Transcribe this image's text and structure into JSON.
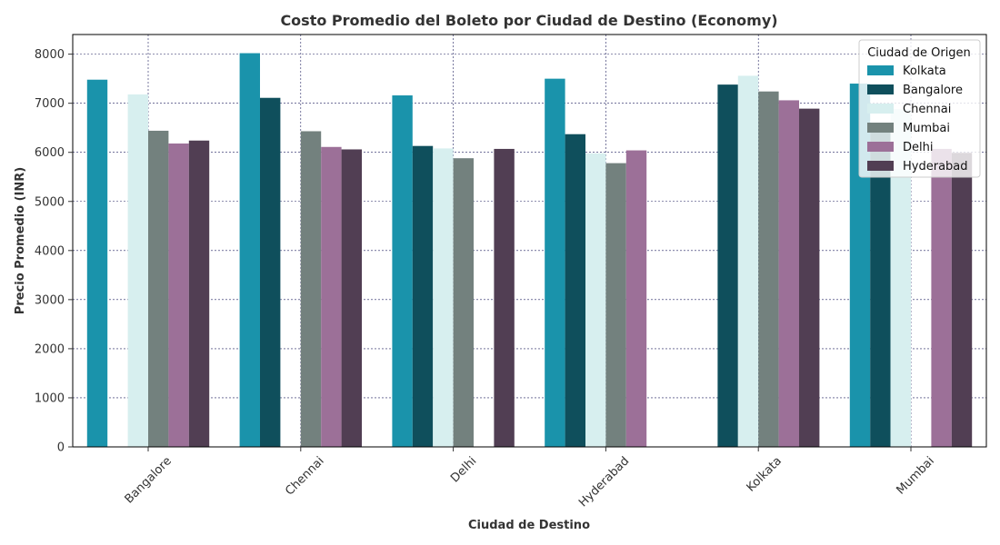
{
  "chart_data": {
    "type": "bar",
    "title": "Costo Promedio del Boleto por Ciudad de Destino (Economy)",
    "xlabel": "Ciudad de Destino",
    "ylabel": "Precio Promedio (INR)",
    "ylim": [
      0,
      8400
    ],
    "yticks": [
      0,
      1000,
      2000,
      3000,
      4000,
      5000,
      6000,
      7000,
      8000
    ],
    "categories": [
      "Bangalore",
      "Chennai",
      "Delhi",
      "Hyderabad",
      "Kolkata",
      "Mumbai"
    ],
    "legend_title": "Ciudad de Origen",
    "legend_position": "top-right",
    "grid": true,
    "series": [
      {
        "name": "Kolkata",
        "color": "#1A93AB",
        "values": [
          7480,
          8020,
          7160,
          7500,
          null,
          7400
        ]
      },
      {
        "name": "Bangalore",
        "color": "#0F4F5C",
        "values": [
          null,
          7110,
          6130,
          6370,
          7380,
          6560
        ]
      },
      {
        "name": "Chennai",
        "color": "#D7EFEF",
        "values": [
          7180,
          null,
          6080,
          5980,
          7560,
          6880
        ]
      },
      {
        "name": "Mumbai",
        "color": "#73817E",
        "values": [
          6440,
          6430,
          5880,
          5780,
          7240,
          null
        ]
      },
      {
        "name": "Delhi",
        "color": "#9C7098",
        "values": [
          6180,
          6110,
          null,
          6040,
          7060,
          6070
        ]
      },
      {
        "name": "Hyderabad",
        "color": "#513E53",
        "values": [
          6240,
          6060,
          6070,
          null,
          6890,
          5990
        ]
      }
    ]
  }
}
